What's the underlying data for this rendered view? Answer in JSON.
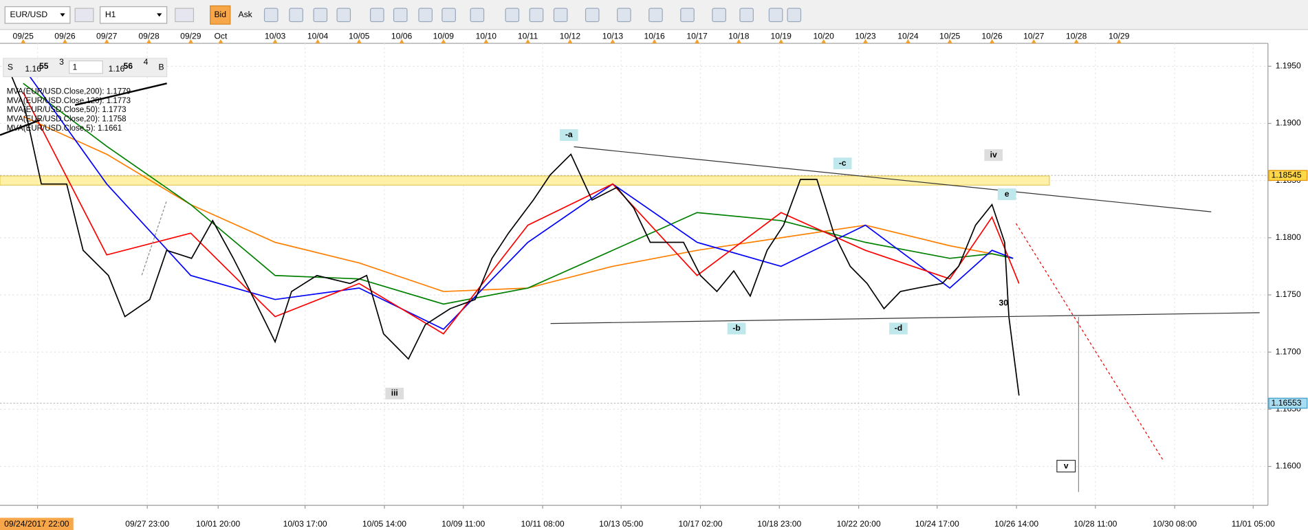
{
  "toolbar": {
    "symbol": "EUR/USD",
    "timeframe": "H1",
    "bid": "Bid",
    "ask": "Ask"
  },
  "quote": {
    "sell_label": "S",
    "sell_big": "1.16",
    "sell_pips": "55",
    "sell_frac": "3",
    "lot": "1",
    "buy_big": "1.16",
    "buy_pips": "56",
    "buy_frac": "4",
    "buy_label": "B"
  },
  "chart_data": {
    "type": "line",
    "xlim": [
      -0.55,
      29.5
    ],
    "ylim": [
      1.1566,
      1.197
    ],
    "grid": true,
    "yticks": [
      {
        "value": 1.195,
        "label": "1.1950"
      },
      {
        "value": 1.19,
        "label": "1.1900"
      },
      {
        "value": 1.185,
        "label": "1.1850"
      },
      {
        "value": 1.18,
        "label": "1.1800"
      },
      {
        "value": 1.175,
        "label": "1.1750"
      },
      {
        "value": 1.17,
        "label": "1.1700"
      },
      {
        "value": 1.165,
        "label": "1.1650"
      },
      {
        "value": 1.16,
        "label": "1.1600"
      }
    ],
    "xticks": [
      {
        "value": 0,
        "label": "09/25"
      },
      {
        "value": 0.99,
        "label": "09/26"
      },
      {
        "value": 1.98,
        "label": "09/27"
      },
      {
        "value": 2.98,
        "label": "09/28"
      },
      {
        "value": 3.97,
        "label": "09/29"
      },
      {
        "value": 4.68,
        "label": "Oct"
      },
      {
        "value": 5.97,
        "label": "10/03"
      },
      {
        "value": 6.98,
        "label": "10/04"
      },
      {
        "value": 7.96,
        "label": "10/05"
      },
      {
        "value": 8.97,
        "label": "10/06"
      },
      {
        "value": 9.96,
        "label": "10/09"
      },
      {
        "value": 10.97,
        "label": "10/10"
      },
      {
        "value": 11.96,
        "label": "10/11"
      },
      {
        "value": 12.96,
        "label": "10/12"
      },
      {
        "value": 13.97,
        "label": "10/13"
      },
      {
        "value": 14.96,
        "label": "10/16"
      },
      {
        "value": 15.97,
        "label": "10/17"
      },
      {
        "value": 16.96,
        "label": "10/18"
      },
      {
        "value": 17.96,
        "label": "10/19"
      },
      {
        "value": 18.97,
        "label": "10/20"
      },
      {
        "value": 19.96,
        "label": "10/23"
      },
      {
        "value": 20.97,
        "label": "10/24"
      },
      {
        "value": 21.96,
        "label": "10/25"
      },
      {
        "value": 22.96,
        "label": "10/26"
      },
      {
        "value": 23.95,
        "label": "10/27"
      },
      {
        "value": 24.96,
        "label": "10/28"
      },
      {
        "value": 25.97,
        "label": "10/29"
      }
    ],
    "x2ticks": [
      {
        "value": 0.34,
        "label": "09/24/2017 22:00"
      },
      {
        "value": 2.94,
        "label": "09/27 23:00"
      },
      {
        "value": 4.62,
        "label": "10/01 20:00"
      },
      {
        "value": 6.68,
        "label": "10/03 17:00"
      },
      {
        "value": 8.56,
        "label": "10/05 14:00"
      },
      {
        "value": 10.43,
        "label": "10/09 11:00"
      },
      {
        "value": 12.31,
        "label": "10/11 08:00"
      },
      {
        "value": 14.17,
        "label": "10/13 05:00"
      },
      {
        "value": 16.05,
        "label": "10/17 02:00"
      },
      {
        "value": 17.92,
        "label": "10/18 23:00"
      },
      {
        "value": 19.8,
        "label": "10/22 20:00"
      },
      {
        "value": 21.66,
        "label": "10/24 17:00"
      },
      {
        "value": 23.54,
        "label": "10/26 14:00"
      },
      {
        "value": 25.41,
        "label": "10/28 11:00"
      },
      {
        "value": 27.29,
        "label": "10/30 08:00"
      },
      {
        "value": 29.15,
        "label": "11/01 05:00"
      }
    ],
    "series": [
      {
        "name": "MVA(EUR/USD.Close,200): 1.1779",
        "color": "#ff7f00",
        "x": [
          0,
          1.98,
          3.97,
          5.97,
          7.96,
          9.96,
          11.96,
          13.97,
          15.97,
          17.96,
          19.96,
          21.96,
          22.96,
          23.46
        ],
        "values": [
          1.1906,
          1.1873,
          1.1829,
          1.1796,
          1.1778,
          1.1753,
          1.1756,
          1.1775,
          1.1789,
          1.18,
          1.1811,
          1.1793,
          1.1786,
          1.1782
        ]
      },
      {
        "name": "MVA(EUR/USD.Close,120): 1.1773",
        "color": "#008000",
        "x": [
          0,
          1.98,
          3.97,
          5.97,
          7.96,
          9.96,
          11.96,
          13.97,
          15.97,
          17.96,
          19.96,
          21.96,
          22.96,
          23.46
        ],
        "values": [
          1.1935,
          1.188,
          1.1829,
          1.1767,
          1.1764,
          1.1742,
          1.1756,
          1.1789,
          1.1822,
          1.1815,
          1.1796,
          1.1782,
          1.1786,
          1.1782
        ]
      },
      {
        "name": "MVA(EUR/USD.Close,50): 1.1773",
        "color": "#0000ff",
        "x": [
          0,
          1.98,
          3.97,
          5.97,
          7.96,
          9.96,
          11.96,
          13.97,
          15.97,
          17.96,
          19.96,
          21.96,
          22.96,
          23.46
        ],
        "values": [
          1.1949,
          1.1847,
          1.1767,
          1.1746,
          1.1756,
          1.172,
          1.1796,
          1.1847,
          1.1796,
          1.1775,
          1.1811,
          1.1756,
          1.1789,
          1.1782
        ]
      },
      {
        "name": "MVA(EUR/USD.Close,20): 1.1758",
        "color": "#ff0000",
        "x": [
          0,
          1.98,
          3.97,
          5.97,
          7.96,
          9.96,
          11.96,
          13.97,
          15.97,
          17.96,
          19.96,
          21.96,
          22.96,
          23.6
        ],
        "values": [
          1.1927,
          1.1785,
          1.1804,
          1.1731,
          1.176,
          1.1716,
          1.1811,
          1.1847,
          1.1767,
          1.1822,
          1.1789,
          1.1764,
          1.1818,
          1.176
        ]
      },
      {
        "name": "MVA(EUR/USD.Close,5): 1.1661",
        "color": "#000000",
        "x": [
          -0.45,
          0.04,
          0.43,
          1.03,
          1.42,
          2.02,
          2.41,
          3.0,
          3.4,
          3.99,
          4.49,
          4.98,
          5.38,
          5.97,
          6.36,
          6.96,
          7.75,
          8.14,
          8.54,
          9.13,
          9.53,
          10.12,
          10.71,
          11.11,
          11.5,
          12.09,
          12.49,
          12.98,
          13.48,
          14.07,
          14.47,
          14.86,
          15.26,
          15.65,
          16.05,
          16.44,
          16.84,
          17.23,
          17.63,
          18.02,
          18.42,
          18.81,
          19.21,
          19.6,
          20.0,
          20.4,
          20.79,
          21.19,
          21.78,
          22.17,
          22.57,
          22.96,
          23.26,
          23.36,
          23.46,
          23.6
        ],
        "values": [
          1.1957,
          1.1913,
          1.1847,
          1.1847,
          1.1789,
          1.1767,
          1.1731,
          1.1746,
          1.1789,
          1.1782,
          1.1815,
          1.1782,
          1.1753,
          1.1709,
          1.1753,
          1.1767,
          1.176,
          1.1767,
          1.1716,
          1.1694,
          1.1724,
          1.1738,
          1.1746,
          1.1782,
          1.1804,
          1.1833,
          1.1855,
          1.1873,
          1.1833,
          1.1844,
          1.1826,
          1.1796,
          1.1796,
          1.1796,
          1.1767,
          1.1753,
          1.1771,
          1.1749,
          1.1789,
          1.1811,
          1.1851,
          1.1851,
          1.1804,
          1.1775,
          1.176,
          1.1738,
          1.1753,
          1.1756,
          1.176,
          1.1775,
          1.1811,
          1.1829,
          1.1796,
          1.1731,
          1.1702,
          1.1662
        ]
      }
    ],
    "annotations": [
      "-a",
      "-b",
      "-c",
      "-d",
      "e",
      "iii",
      "iv",
      "v",
      "30"
    ],
    "price_tags": [
      1.18545,
      1.16553
    ]
  }
}
